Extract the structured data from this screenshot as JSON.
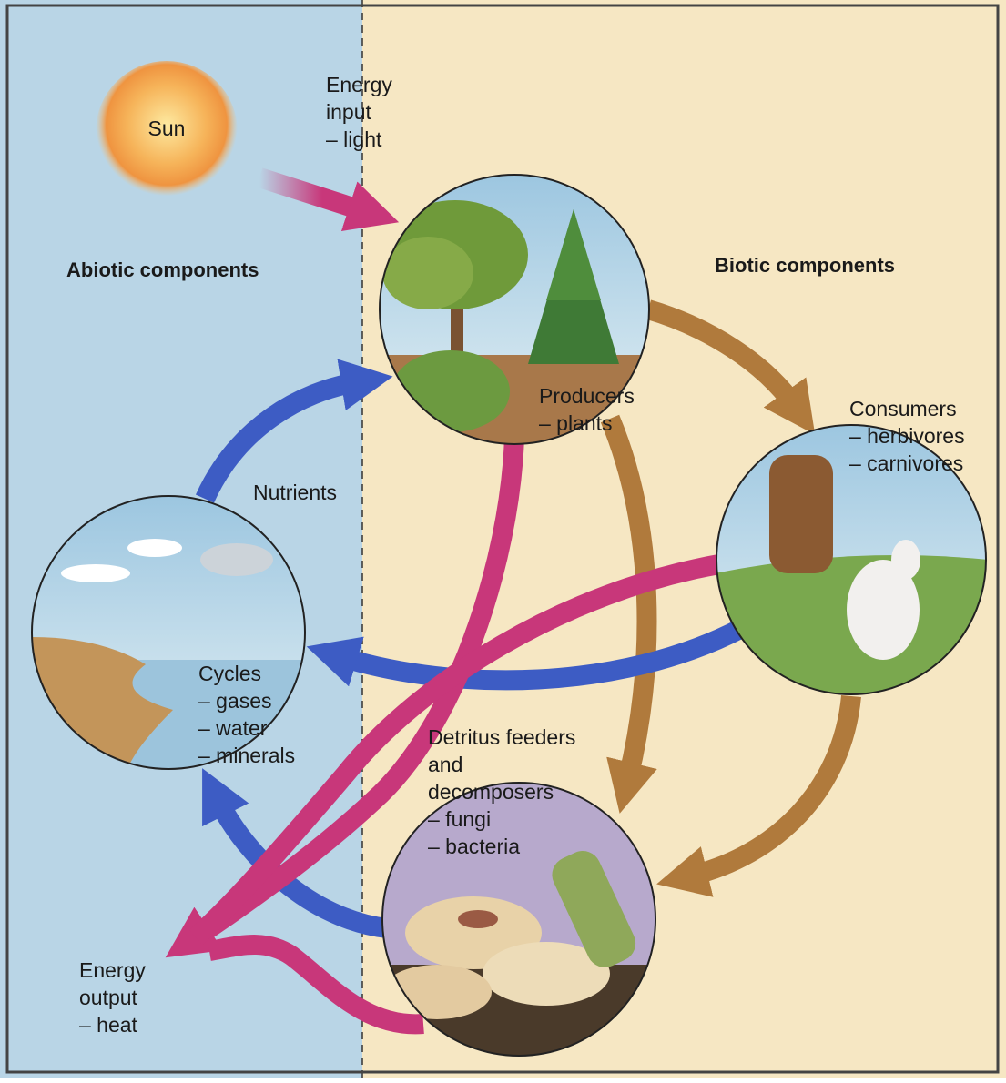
{
  "regions": {
    "abiotic": "Abiotic components",
    "biotic": "Biotic components"
  },
  "sun": "Sun",
  "energy_input": [
    "Energy",
    "input",
    "– light"
  ],
  "producers": [
    "Producers",
    "– plants"
  ],
  "consumers": [
    "Consumers",
    "– herbivores",
    "– carnivores"
  ],
  "nutrients": "Nutrients",
  "cycles": [
    "Cycles",
    "– gases",
    "– water",
    "– minerals"
  ],
  "decomposers": [
    "Detritus feeders",
    "and",
    "decomposers",
    "– fungi",
    "– bacteria"
  ],
  "energy_output": [
    "Energy",
    "output",
    "– heat"
  ]
}
